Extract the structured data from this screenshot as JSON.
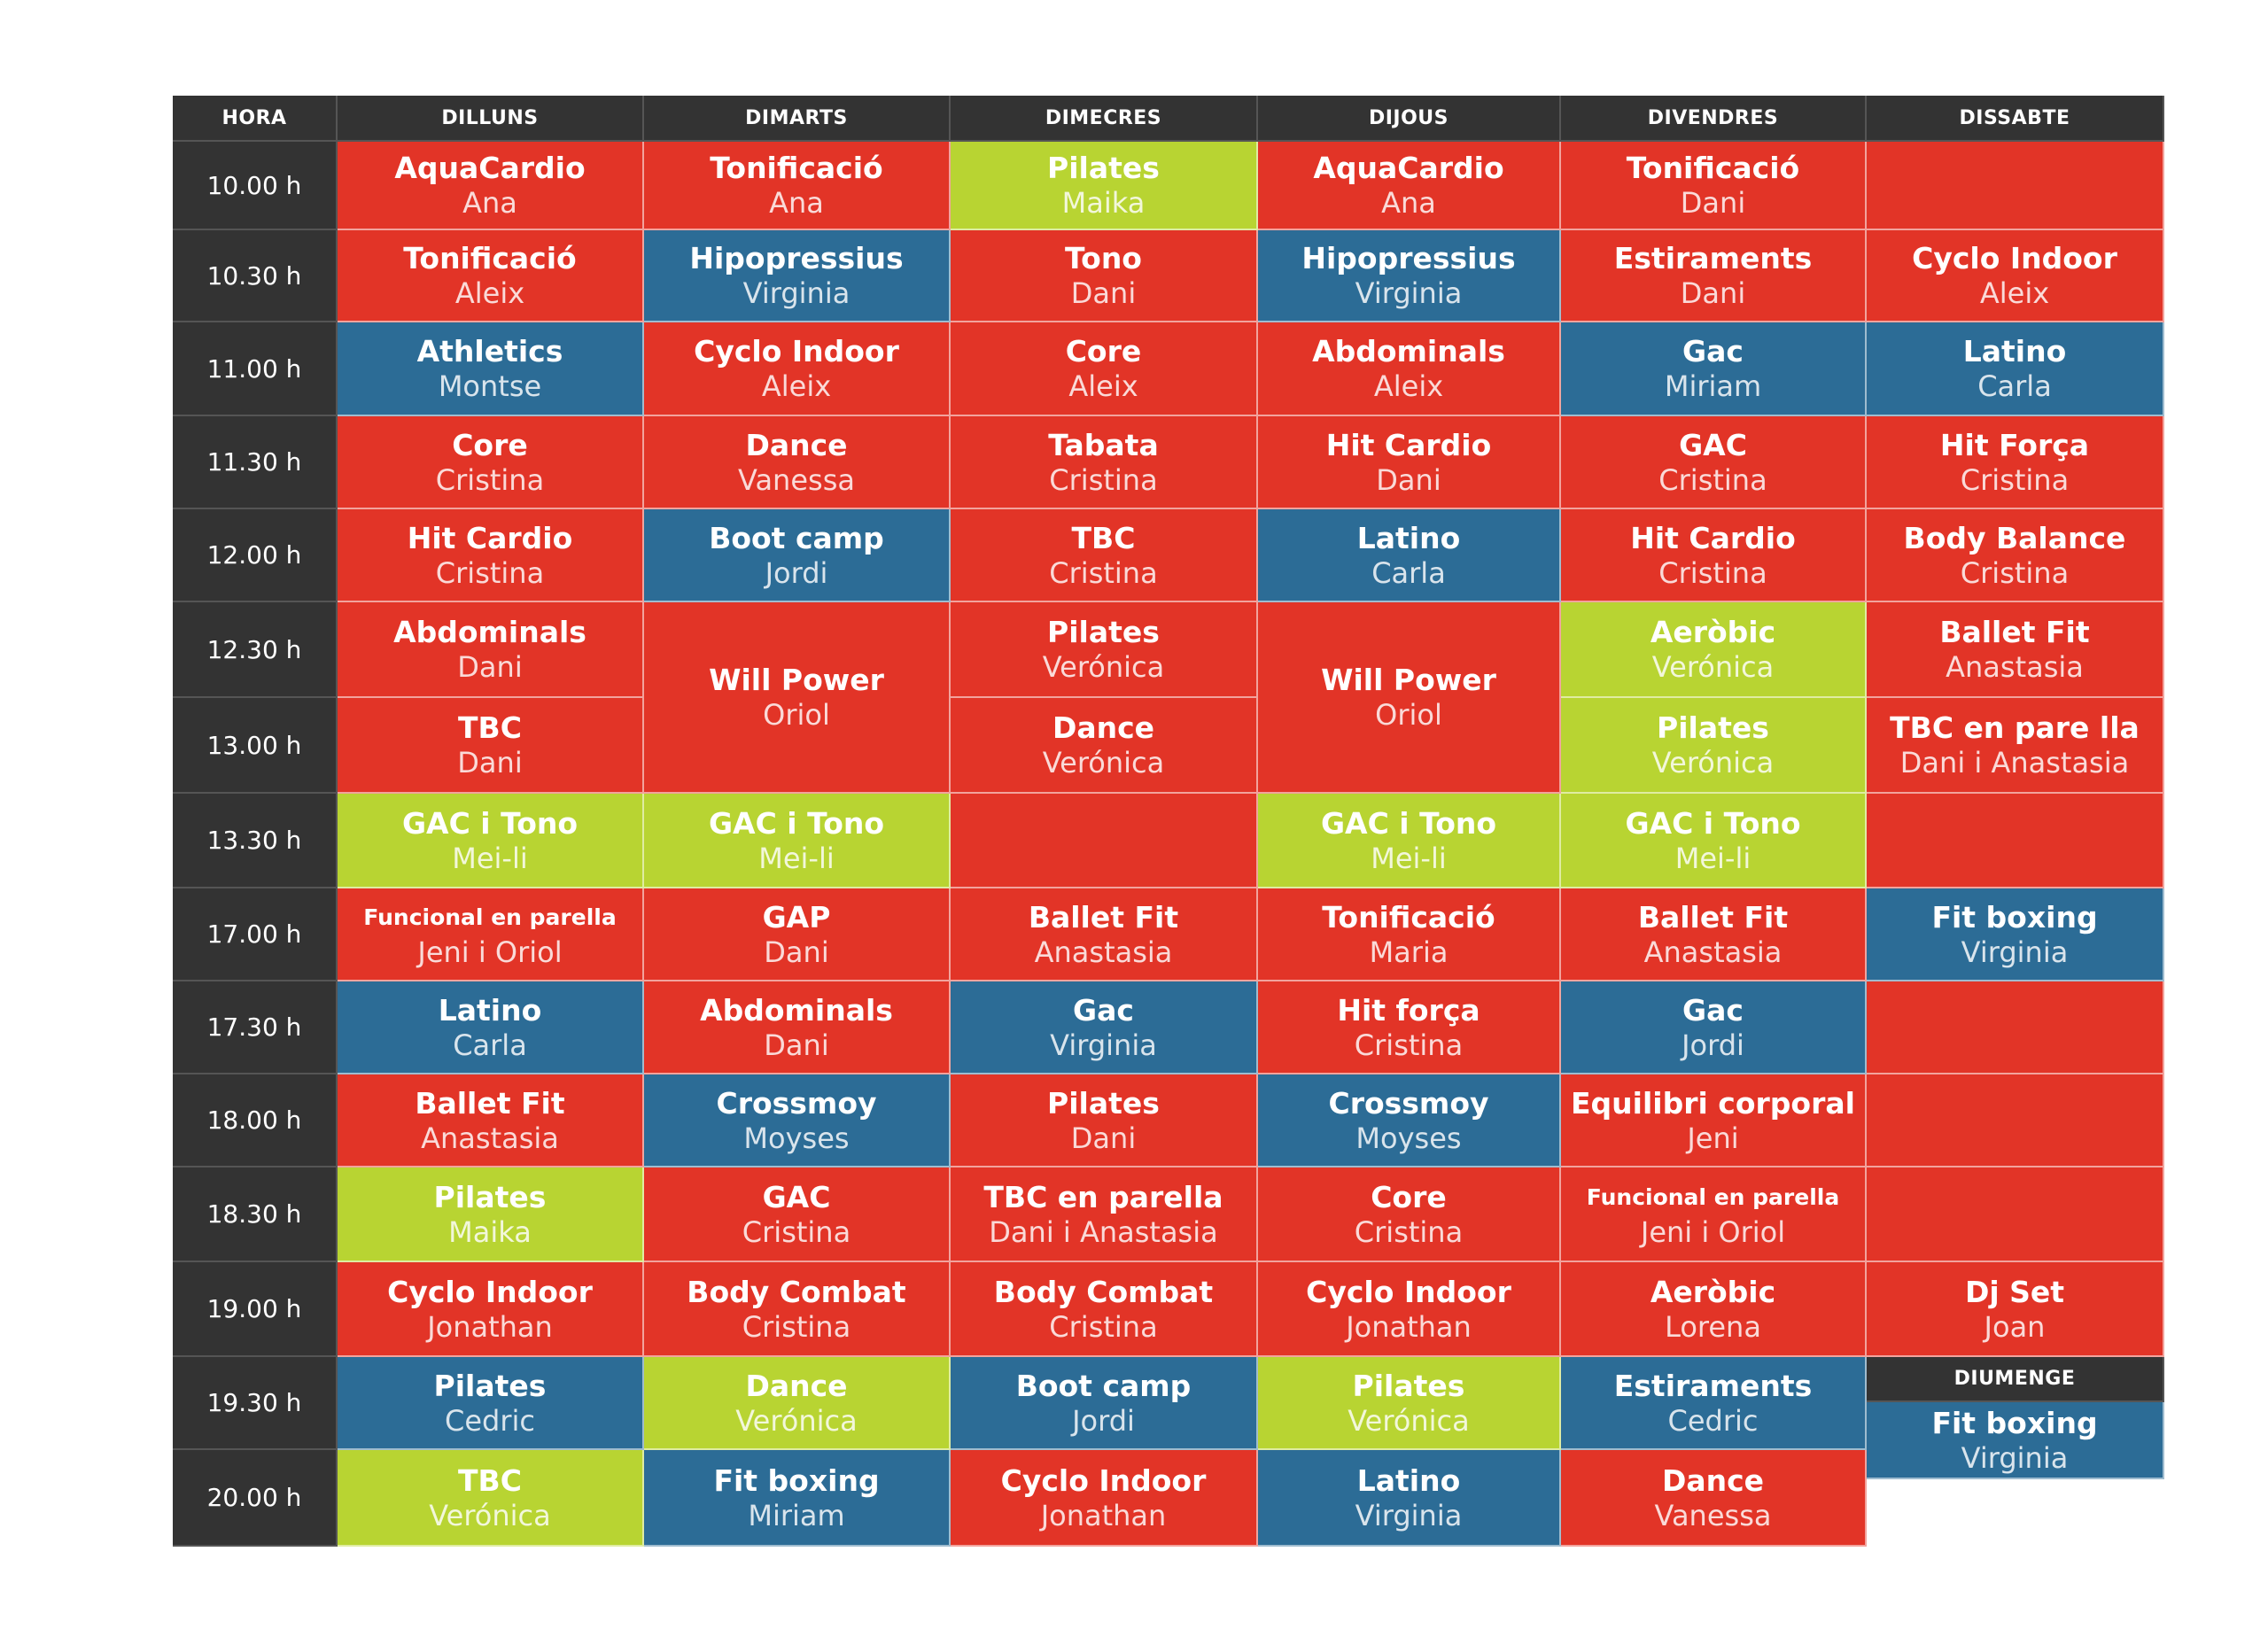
{
  "colors": {
    "red": "#e23427",
    "blue": "#2c6c96",
    "green": "#b8d432",
    "dark": "#333333"
  },
  "headers": [
    "HORA",
    "DILLUNS",
    "DIMARTS",
    "DIMECRES",
    "DIJOUS",
    "DIVENDRES",
    "DISSABTE"
  ],
  "diumenge_label": "DIUMENGE",
  "times": [
    "10.00 h",
    "10.30 h",
    "11.00 h",
    "11.30 h",
    "12.00 h",
    "12.30 h",
    "13.00 h",
    "13.30 h",
    "17.00 h",
    "17.30 h",
    "18.00 h",
    "18.30 h",
    "19.00 h",
    "19.30 h",
    "20.00 h"
  ],
  "classes": [
    {
      "row": 0,
      "col": 1,
      "color": "red",
      "name": "AquaCardio",
      "instructor": "Ana"
    },
    {
      "row": 0,
      "col": 2,
      "color": "red",
      "name": "Tonificació",
      "instructor": "Ana"
    },
    {
      "row": 0,
      "col": 3,
      "color": "green",
      "name": "Pilates",
      "instructor": "Maika"
    },
    {
      "row": 0,
      "col": 4,
      "color": "red",
      "name": "AquaCardio",
      "instructor": "Ana"
    },
    {
      "row": 0,
      "col": 5,
      "color": "red",
      "name": "Tonificació",
      "instructor": "Dani"
    },
    {
      "row": 0,
      "col": 6,
      "color": "red"
    },
    {
      "row": 1,
      "col": 1,
      "color": "red",
      "name": "Tonificació",
      "instructor": "Aleix"
    },
    {
      "row": 1,
      "col": 2,
      "color": "blue",
      "name": "Hipopressius",
      "instructor": "Virginia"
    },
    {
      "row": 1,
      "col": 3,
      "color": "red",
      "name": "Tono",
      "instructor": "Dani"
    },
    {
      "row": 1,
      "col": 4,
      "color": "blue",
      "name": "Hipopressius",
      "instructor": "Virginia"
    },
    {
      "row": 1,
      "col": 5,
      "color": "red",
      "name": "Estiraments",
      "instructor": "Dani"
    },
    {
      "row": 1,
      "col": 6,
      "color": "red",
      "name": "Cyclo Indoor",
      "instructor": "Aleix"
    },
    {
      "row": 2,
      "col": 1,
      "color": "blue",
      "name": "Athletics",
      "instructor": "Montse"
    },
    {
      "row": 2,
      "col": 2,
      "color": "red",
      "name": "Cyclo Indoor",
      "instructor": "Aleix"
    },
    {
      "row": 2,
      "col": 3,
      "color": "red",
      "name": "Core",
      "instructor": "Aleix"
    },
    {
      "row": 2,
      "col": 4,
      "color": "red",
      "name": "Abdominals",
      "instructor": "Aleix"
    },
    {
      "row": 2,
      "col": 5,
      "color": "blue",
      "name": "Gac",
      "instructor": "Miriam"
    },
    {
      "row": 2,
      "col": 6,
      "color": "blue",
      "name": "Latino",
      "instructor": "Carla"
    },
    {
      "row": 3,
      "col": 1,
      "color": "red",
      "name": "Core",
      "instructor": "Cristina"
    },
    {
      "row": 3,
      "col": 2,
      "color": "red",
      "name": "Dance",
      "instructor": "Vanessa"
    },
    {
      "row": 3,
      "col": 3,
      "color": "red",
      "name": "Tabata",
      "instructor": "Cristina"
    },
    {
      "row": 3,
      "col": 4,
      "color": "red",
      "name": "Hit Cardio",
      "instructor": "Dani"
    },
    {
      "row": 3,
      "col": 5,
      "color": "red",
      "name": "GAC",
      "instructor": "Cristina"
    },
    {
      "row": 3,
      "col": 6,
      "color": "red",
      "name": "Hit Força",
      "instructor": "Cristina"
    },
    {
      "row": 4,
      "col": 1,
      "color": "red",
      "name": "Hit Cardio",
      "instructor": "Cristina"
    },
    {
      "row": 4,
      "col": 2,
      "color": "blue",
      "name": "Boot camp",
      "instructor": "Jordi"
    },
    {
      "row": 4,
      "col": 3,
      "color": "red",
      "name": "TBC",
      "instructor": "Cristina"
    },
    {
      "row": 4,
      "col": 4,
      "color": "blue",
      "name": "Latino",
      "instructor": "Carla"
    },
    {
      "row": 4,
      "col": 5,
      "color": "red",
      "name": "Hit Cardio",
      "instructor": "Cristina"
    },
    {
      "row": 4,
      "col": 6,
      "color": "red",
      "name": "Body Balance",
      "instructor": "Cristina"
    },
    {
      "row": 5,
      "col": 1,
      "color": "red",
      "name": "Abdominals",
      "instructor": "Dani"
    },
    {
      "row": 5,
      "col": 2,
      "color": "red",
      "span": 2,
      "name": "Will Power",
      "instructor": "Oriol"
    },
    {
      "row": 5,
      "col": 3,
      "color": "red",
      "name": "Pilates",
      "instructor": "Verónica"
    },
    {
      "row": 5,
      "col": 4,
      "color": "red",
      "span": 2,
      "name": "Will Power",
      "instructor": "Oriol"
    },
    {
      "row": 5,
      "col": 5,
      "color": "green",
      "name": "Aeròbic",
      "instructor": "Verónica"
    },
    {
      "row": 5,
      "col": 6,
      "color": "red",
      "name": "Ballet Fit",
      "instructor": "Anastasia"
    },
    {
      "row": 6,
      "col": 1,
      "color": "red",
      "name": "TBC",
      "instructor": "Dani"
    },
    {
      "row": 6,
      "col": 3,
      "color": "red",
      "name": "Dance",
      "instructor": "Verónica"
    },
    {
      "row": 6,
      "col": 5,
      "color": "green",
      "name": "Pilates",
      "instructor": "Verónica"
    },
    {
      "row": 6,
      "col": 6,
      "color": "red",
      "name": "TBC en pare lla",
      "instructor": "Dani i Anastasia"
    },
    {
      "row": 7,
      "col": 1,
      "color": "green",
      "name": "GAC i Tono",
      "instructor": "Mei-li"
    },
    {
      "row": 7,
      "col": 2,
      "color": "green",
      "name": "GAC i Tono",
      "instructor": "Mei-li"
    },
    {
      "row": 7,
      "col": 3,
      "color": "red"
    },
    {
      "row": 7,
      "col": 4,
      "color": "green",
      "name": "GAC i Tono",
      "instructor": "Mei-li"
    },
    {
      "row": 7,
      "col": 5,
      "color": "green",
      "name": "GAC i Tono",
      "instructor": "Mei-li"
    },
    {
      "row": 7,
      "col": 6,
      "color": "red"
    },
    {
      "row": 8,
      "col": 1,
      "color": "red",
      "small": true,
      "name": "Funcional en parella",
      "instructor": "Jeni i Oriol"
    },
    {
      "row": 8,
      "col": 2,
      "color": "red",
      "name": "GAP",
      "instructor": "Dani"
    },
    {
      "row": 8,
      "col": 3,
      "color": "red",
      "name": "Ballet Fit",
      "instructor": "Anastasia"
    },
    {
      "row": 8,
      "col": 4,
      "color": "red",
      "name": "Tonificació",
      "instructor": "Maria"
    },
    {
      "row": 8,
      "col": 5,
      "color": "red",
      "name": "Ballet Fit",
      "instructor": "Anastasia"
    },
    {
      "row": 8,
      "col": 6,
      "color": "blue",
      "name": "Fit boxing",
      "instructor": "Virginia"
    },
    {
      "row": 9,
      "col": 1,
      "color": "blue",
      "name": "Latino",
      "instructor": "Carla"
    },
    {
      "row": 9,
      "col": 2,
      "color": "red",
      "name": "Abdominals",
      "instructor": "Dani"
    },
    {
      "row": 9,
      "col": 3,
      "color": "blue",
      "name": "Gac",
      "instructor": "Virginia"
    },
    {
      "row": 9,
      "col": 4,
      "color": "red",
      "name": "Hit força",
      "instructor": "Cristina"
    },
    {
      "row": 9,
      "col": 5,
      "color": "blue",
      "name": "Gac",
      "instructor": "Jordi"
    },
    {
      "row": 9,
      "col": 6,
      "color": "red"
    },
    {
      "row": 10,
      "col": 1,
      "color": "red",
      "name": "Ballet Fit",
      "instructor": "Anastasia"
    },
    {
      "row": 10,
      "col": 2,
      "color": "blue",
      "name": "Crossmoy",
      "instructor": "Moyses"
    },
    {
      "row": 10,
      "col": 3,
      "color": "red",
      "name": "Pilates",
      "instructor": "Dani"
    },
    {
      "row": 10,
      "col": 4,
      "color": "blue",
      "name": "Crossmoy",
      "instructor": "Moyses"
    },
    {
      "row": 10,
      "col": 5,
      "color": "red",
      "name": "Equilibri corporal",
      "instructor": "Jeni"
    },
    {
      "row": 10,
      "col": 6,
      "color": "red"
    },
    {
      "row": 11,
      "col": 1,
      "color": "green",
      "name": "Pilates",
      "instructor": "Maika"
    },
    {
      "row": 11,
      "col": 2,
      "color": "red",
      "name": "GAC",
      "instructor": "Cristina"
    },
    {
      "row": 11,
      "col": 3,
      "color": "red",
      "name": "TBC en parella",
      "instructor": "Dani i Anastasia"
    },
    {
      "row": 11,
      "col": 4,
      "color": "red",
      "name": "Core",
      "instructor": "Cristina"
    },
    {
      "row": 11,
      "col": 5,
      "color": "red",
      "small": true,
      "name": "Funcional en parella",
      "instructor": "Jeni i Oriol"
    },
    {
      "row": 11,
      "col": 6,
      "color": "red"
    },
    {
      "row": 12,
      "col": 1,
      "color": "red",
      "name": "Cyclo Indoor",
      "instructor": "Jonathan"
    },
    {
      "row": 12,
      "col": 2,
      "color": "red",
      "name": "Body Combat",
      "instructor": "Cristina"
    },
    {
      "row": 12,
      "col": 3,
      "color": "red",
      "name": "Body Combat",
      "instructor": "Cristina"
    },
    {
      "row": 12,
      "col": 4,
      "color": "red",
      "name": "Cyclo Indoor",
      "instructor": "Jonathan"
    },
    {
      "row": 12,
      "col": 5,
      "color": "red",
      "name": "Aeròbic",
      "instructor": "Lorena"
    },
    {
      "row": 12,
      "col": 6,
      "color": "red",
      "name": "Dj Set",
      "instructor": "Joan"
    },
    {
      "row": 13,
      "col": 1,
      "color": "blue",
      "name": "Pilates",
      "instructor": "Cedric"
    },
    {
      "row": 13,
      "col": 2,
      "color": "green",
      "name": "Dance",
      "instructor": "Verónica"
    },
    {
      "row": 13,
      "col": 3,
      "color": "blue",
      "name": "Boot camp",
      "instructor": "Jordi"
    },
    {
      "row": 13,
      "col": 4,
      "color": "green",
      "name": "Pilates",
      "instructor": "Verónica"
    },
    {
      "row": 13,
      "col": 5,
      "color": "blue",
      "name": "Estiraments",
      "instructor": "Cedric"
    },
    {
      "row": 14,
      "col": 1,
      "color": "green",
      "name": "TBC",
      "instructor": "Verónica"
    },
    {
      "row": 14,
      "col": 2,
      "color": "blue",
      "name": "Fit boxing",
      "instructor": "Miriam"
    },
    {
      "row": 14,
      "col": 3,
      "color": "red",
      "name": "Cyclo Indoor",
      "instructor": "Jonathan"
    },
    {
      "row": 14,
      "col": 4,
      "color": "blue",
      "name": "Latino",
      "instructor": "Virginia"
    },
    {
      "row": 14,
      "col": 5,
      "color": "red",
      "name": "Dance",
      "instructor": "Vanessa"
    }
  ],
  "diumenge_class": {
    "color": "blue",
    "name": "Fit boxing",
    "instructor": "Virginia"
  }
}
